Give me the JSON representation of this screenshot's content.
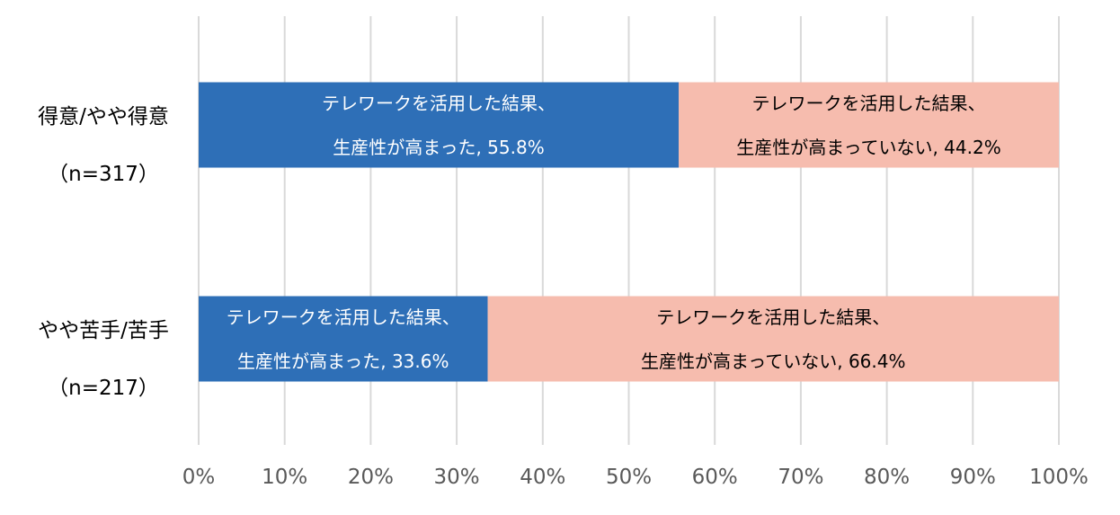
{
  "chart_data": {
    "type": "bar",
    "orientation": "horizontal",
    "stacked": true,
    "categories": [
      {
        "line1": "得意/やや得意",
        "line2": "（n=317）"
      },
      {
        "line1": "やや苦手/苦手",
        "line2": "（n=217）"
      }
    ],
    "series": [
      {
        "color": "#2e6fb7",
        "values": [
          55.8,
          33.6
        ],
        "labels": [
          {
            "line1": "テレワークを活用した結果、",
            "line2": "生産性が高まった, 55.8%"
          },
          {
            "line1": "テレワークを活用した結果、",
            "line2": "生産性が高まった, 33.6%"
          }
        ]
      },
      {
        "color": "#f6bcae",
        "values": [
          44.2,
          66.4
        ],
        "labels": [
          {
            "line1": "テレワークを活用した結果、",
            "line2": "生産性が高まっていない, 44.2%"
          },
          {
            "line1": "テレワークを活用した結果、",
            "line2": "生産性が高まっていない, 66.4%"
          }
        ]
      }
    ],
    "xlim": [
      0,
      100
    ],
    "xticks": [
      0,
      10,
      20,
      30,
      40,
      50,
      60,
      70,
      80,
      90,
      100
    ],
    "xtick_labels": [
      "0%",
      "10%",
      "20%",
      "30%",
      "40%",
      "50%",
      "60%",
      "70%",
      "80%",
      "90%",
      "100%"
    ],
    "grid": true,
    "title": "",
    "xlabel": "",
    "ylabel": ""
  }
}
